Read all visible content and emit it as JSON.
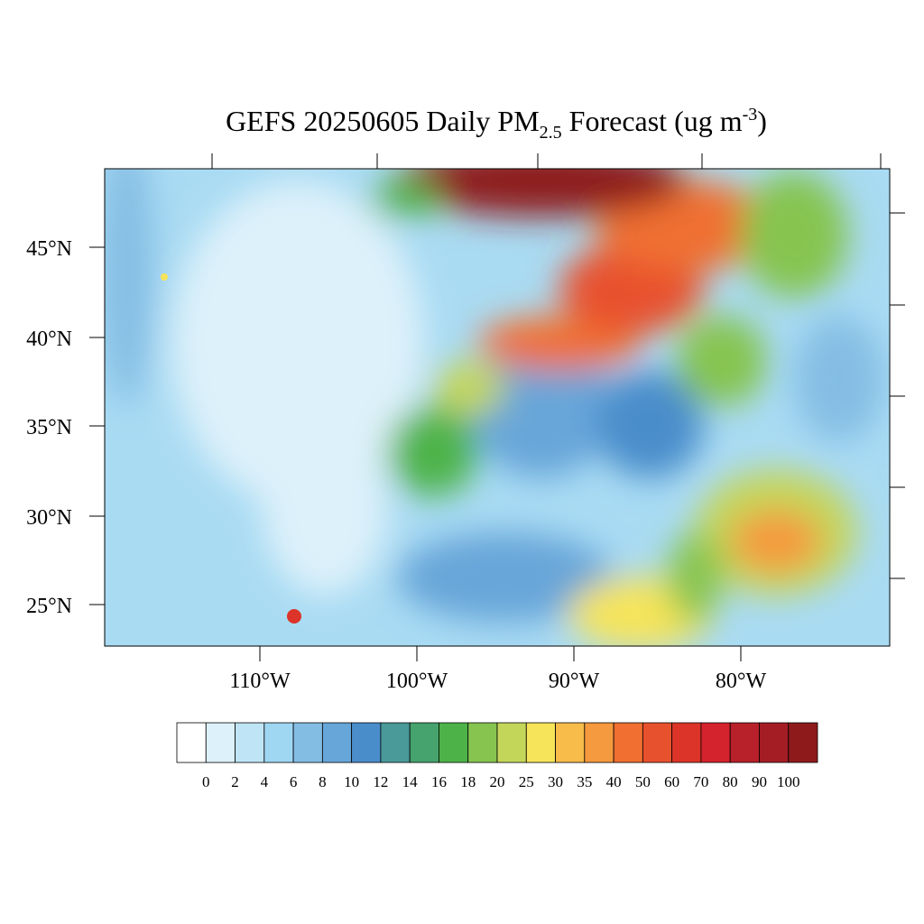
{
  "title": {
    "main": "GEFS 20250605 Daily PM",
    "subscript": "2.5",
    "after_subscript": "Forecast (ug m",
    "superscript": "-3",
    "end": ")"
  },
  "map": {
    "lat_labels": [
      "45°N",
      "40°N",
      "35°N",
      "30°N",
      "25°N"
    ],
    "lon_labels": [
      "110°W",
      "100°W",
      "90°W",
      "80°W"
    ]
  },
  "colorbar": {
    "levels": [
      0,
      2,
      4,
      6,
      8,
      10,
      12,
      14,
      16,
      18,
      20,
      25,
      30,
      35,
      40,
      50,
      60,
      70,
      80,
      90,
      100
    ],
    "colors": [
      "#ffffff",
      "#ddf1fa",
      "#bfe4f6",
      "#9fd6f2",
      "#84bde4",
      "#67a6d9",
      "#4a8dcb",
      "#4a9a9a",
      "#46a36e",
      "#4db348",
      "#86c44f",
      "#c4d65a",
      "#f6e45a",
      "#f8bc4a",
      "#f59a3e",
      "#f06f31",
      "#e8512d",
      "#dc3429",
      "#d4232c",
      "#b8202a",
      "#a51d24",
      "#8e1a1c"
    ]
  }
}
